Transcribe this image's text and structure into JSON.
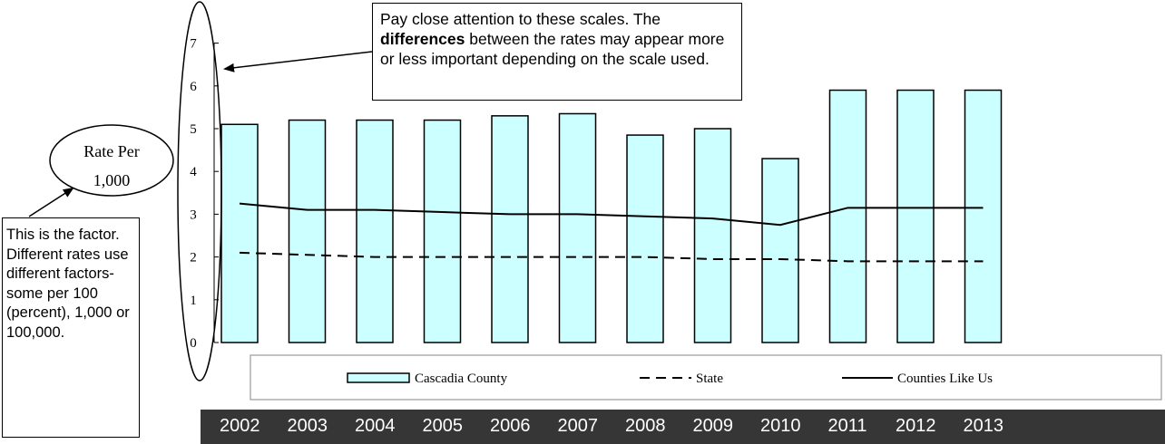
{
  "chart_data": {
    "type": "bar",
    "categories": [
      "2002",
      "2003",
      "2004",
      "2005",
      "2006",
      "2007",
      "2008",
      "2009",
      "2010",
      "2011",
      "2012",
      "2013"
    ],
    "series": [
      {
        "name": "Cascadia County",
        "kind": "bar",
        "values": [
          5.1,
          5.2,
          5.2,
          5.2,
          5.3,
          5.35,
          4.85,
          5.0,
          4.3,
          5.9,
          5.9,
          5.9
        ],
        "fill": "#ccffff"
      },
      {
        "name": "State",
        "kind": "line",
        "style": "dashed",
        "values": [
          2.1,
          2.05,
          2.0,
          2.0,
          2.0,
          2.0,
          2.0,
          1.95,
          1.95,
          1.9,
          1.9,
          1.9
        ]
      },
      {
        "name": "Counties Like Us",
        "kind": "line",
        "style": "solid",
        "values": [
          3.25,
          3.1,
          3.1,
          3.05,
          3.0,
          3.0,
          2.95,
          2.9,
          2.75,
          3.15,
          3.15,
          3.15
        ]
      }
    ],
    "yticks": [
      0,
      1,
      2,
      3,
      4,
      5,
      6,
      7
    ],
    "ylim": [
      0,
      7
    ],
    "legend_position": "bottom",
    "ylabel_line1": "Rate Per",
    "ylabel_line2": "1,000"
  },
  "annotations": {
    "scales_note_part1": "Pay close attention to these scales. The ",
    "scales_note_bold": "differences",
    "scales_note_part2": " between the rates may appear more or less important depending on the scale used.",
    "factor_note": "This is the factor. Different rates use different factors- some per 100 (percent), 1,000 or 100,000."
  },
  "colors": {
    "bar_fill": "#ccffff",
    "year_bar": "#363636"
  }
}
